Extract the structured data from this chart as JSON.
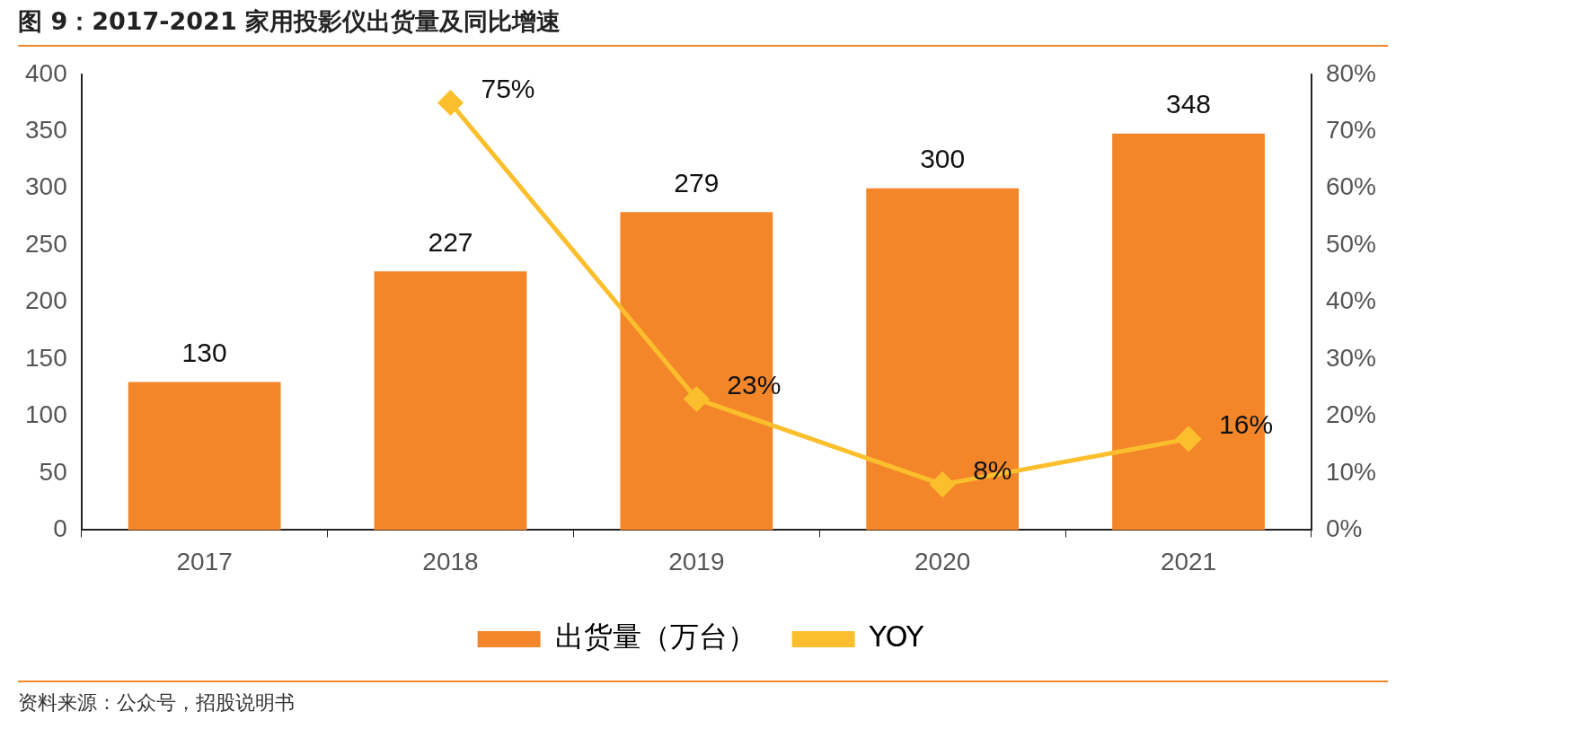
{
  "chart_data": {
    "type": "bar",
    "title": "图 9：2017-2021 家用投影仪出货量及同比增速",
    "categories": [
      "2017",
      "2018",
      "2019",
      "2020",
      "2021"
    ],
    "series": [
      {
        "name": "出货量（万台）",
        "color": "#f4862a",
        "values": [
          130,
          227,
          279,
          300,
          348
        ],
        "value_labels": [
          "130",
          "227",
          "279",
          "300",
          "348"
        ]
      },
      {
        "name": "YOY",
        "type": "line",
        "axis": "y2",
        "color": "#fbbf2d",
        "values": [
          null,
          75,
          23,
          8,
          16
        ],
        "value_labels": [
          null,
          "75%",
          "23%",
          "8%",
          "16%"
        ]
      }
    ],
    "ylim": [
      0,
      400
    ],
    "yticks": [
      0,
      50,
      100,
      150,
      200,
      250,
      300,
      350,
      400
    ],
    "y2lim": [
      0,
      80
    ],
    "y2ticks": [
      {
        "value": 0,
        "label": "0%"
      },
      {
        "value": 10,
        "label": "10%"
      },
      {
        "value": 20,
        "label": "20%"
      },
      {
        "value": 30,
        "label": "30%"
      },
      {
        "value": 40,
        "label": "40%"
      },
      {
        "value": 50,
        "label": "50%"
      },
      {
        "value": 60,
        "label": "60%"
      },
      {
        "value": 70,
        "label": "70%"
      },
      {
        "value": 80,
        "label": "80%"
      }
    ],
    "grid": false,
    "legend": "bottom",
    "marker": "diamond",
    "line_style": "solid",
    "annotations": [
      "资料来源：公众号，招股说明书"
    ]
  }
}
